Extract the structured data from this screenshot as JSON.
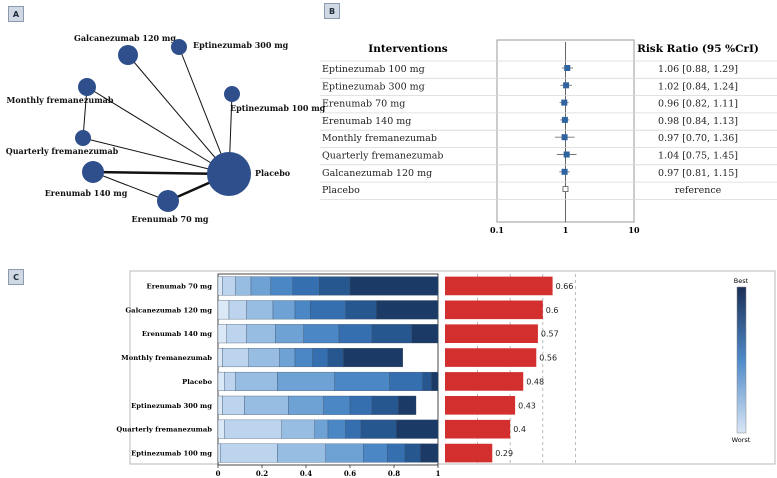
{
  "panels": {
    "a": "A",
    "b": "B",
    "c": "C"
  },
  "colors": {
    "node": "#2e4f8c",
    "bar": "#d32f2f",
    "forest": "#2f64a0",
    "scale_best": "#1b2f57",
    "scale_worst": "#d9e6f5"
  },
  "network": {
    "nodes": [
      {
        "id": "galc",
        "label": "Galcanezumab 120 mg",
        "size": 10
      },
      {
        "id": "ept300",
        "label": "Eptinezumab 300 mg",
        "size": 8
      },
      {
        "id": "monthly",
        "label": "Monthly fremanezumab",
        "size": 9
      },
      {
        "id": "ept100",
        "label": "Eptinezumab 100 mg",
        "size": 8
      },
      {
        "id": "quarterly",
        "label": "Quarterly fremanezumab",
        "size": 8
      },
      {
        "id": "eren140",
        "label": "Erenumab 140 mg",
        "size": 11
      },
      {
        "id": "eren70",
        "label": "Erenumab 70 mg",
        "size": 11
      },
      {
        "id": "placebo",
        "label": "Placebo",
        "size": 22
      }
    ],
    "edges": [
      {
        "from": "galc",
        "to": "placebo",
        "weight": 1
      },
      {
        "from": "ept300",
        "to": "placebo",
        "weight": 1
      },
      {
        "from": "monthly",
        "to": "placebo",
        "weight": 1
      },
      {
        "from": "ept100",
        "to": "placebo",
        "weight": 1
      },
      {
        "from": "quarterly",
        "to": "placebo",
        "weight": 1
      },
      {
        "from": "eren140",
        "to": "placebo",
        "weight": 2.5
      },
      {
        "from": "eren70",
        "to": "placebo",
        "weight": 2.5
      },
      {
        "from": "monthly",
        "to": "quarterly",
        "weight": 1
      },
      {
        "from": "eren140",
        "to": "eren70",
        "weight": 1
      }
    ]
  },
  "forest": {
    "header_interventions": "Interventions",
    "header_rr": "Risk Ratio (95 %CrI)",
    "rows": [
      {
        "name": "Eptinezumab 100 mg",
        "rr": 1.06,
        "lo": 0.88,
        "hi": 1.29,
        "text": "1.06 [0.88, 1.29]"
      },
      {
        "name": "Eptinezumab 300 mg",
        "rr": 1.02,
        "lo": 0.84,
        "hi": 1.24,
        "text": "1.02 [0.84, 1.24]"
      },
      {
        "name": "Erenumab 70 mg",
        "rr": 0.96,
        "lo": 0.82,
        "hi": 1.11,
        "text": "0.96 [0.82, 1.11]"
      },
      {
        "name": "Erenumab 140 mg",
        "rr": 0.98,
        "lo": 0.84,
        "hi": 1.13,
        "text": "0.98 [0.84, 1.13]"
      },
      {
        "name": "Monthly fremanezumab",
        "rr": 0.97,
        "lo": 0.7,
        "hi": 1.36,
        "text": "0.97 [0.70, 1.36]"
      },
      {
        "name": "Quarterly fremanezumab",
        "rr": 1.04,
        "lo": 0.75,
        "hi": 1.45,
        "text": "1.04 [0.75, 1.45]"
      },
      {
        "name": "Galcanezumab 120 mg",
        "rr": 0.97,
        "lo": 0.81,
        "hi": 1.15,
        "text": "0.97 [0.81, 1.15]"
      },
      {
        "name": "Placebo",
        "rr": 1,
        "lo": 1,
        "hi": 1,
        "text": "reference",
        "reference": true
      }
    ],
    "axis_ticks": [
      {
        "v": 0.1,
        "label": "0.1"
      },
      {
        "v": 1,
        "label": "1"
      },
      {
        "v": 10,
        "label": "10"
      }
    ]
  },
  "chart_data": {
    "type": "bar",
    "title": "",
    "categories": [
      "Erenumab 70 mg",
      "Galcanezumab 120 mg",
      "Erenumab 140 mg",
      "Monthly fremanezumab",
      "Placebo",
      "Eptinezumab 300 mg",
      "Quarterly fremanezumab",
      "Eptinezumab 100 mg"
    ],
    "rank_probabilities": [
      [
        0.02,
        0.06,
        0.07,
        0.09,
        0.1,
        0.12,
        0.14,
        0.4
      ],
      [
        0.05,
        0.08,
        0.12,
        0.1,
        0.07,
        0.16,
        0.14,
        0.28
      ],
      [
        0.04,
        0.09,
        0.13,
        0.13,
        0.16,
        0.15,
        0.18,
        0.12
      ],
      [
        0.02,
        0.12,
        0.14,
        0.07,
        0.08,
        0.07,
        0.07,
        0.27
      ],
      [
        0.03,
        0.05,
        0.19,
        0.26,
        0.25,
        0.15,
        0.04,
        0.03
      ],
      [
        0.02,
        0.1,
        0.2,
        0.16,
        0.12,
        0.1,
        0.12,
        0.08
      ],
      [
        0.03,
        0.26,
        0.15,
        0.06,
        0.08,
        0.07,
        0.16,
        0.19
      ],
      [
        0.01,
        0.26,
        0.22,
        0.17,
        0.11,
        0.08,
        0.07,
        0.08
      ]
    ],
    "sucra": [
      0.66,
      0.6,
      0.57,
      0.56,
      0.48,
      0.43,
      0.4,
      0.29
    ],
    "sucra_labels": [
      "0.66",
      "0.6",
      "0.57",
      "0.56",
      "0.48",
      "0.43",
      "0.4",
      "0.29"
    ],
    "xlim": [
      0,
      1
    ],
    "x_ticks": [
      "0",
      "0.2",
      "0.4",
      "0.6",
      "0.8",
      "1"
    ],
    "legend": {
      "best": "Best",
      "worst": "Worst"
    }
  }
}
